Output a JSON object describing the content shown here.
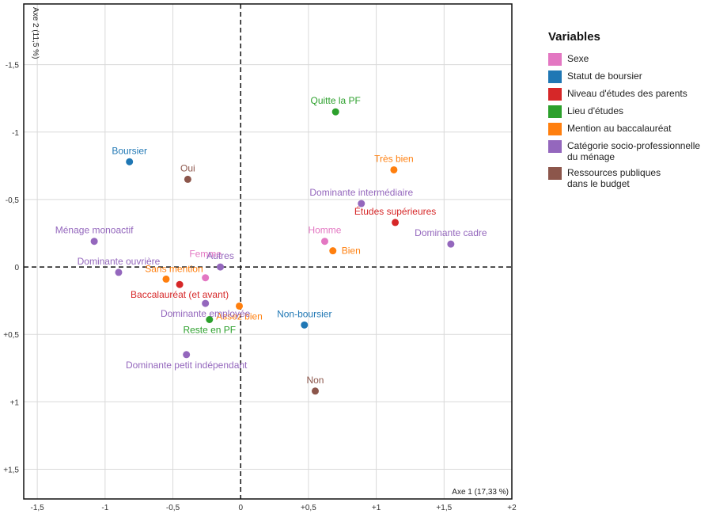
{
  "chart_data": {
    "type": "scatter",
    "xlabel": "Axe 1 (17,33 %)",
    "ylabel": "Axe 2 (11,5 %)",
    "xlim": [
      -1.6,
      2.0
    ],
    "ylim": [
      -1.95,
      1.72
    ],
    "y_inverted": true,
    "grid": true,
    "legend_position": "right",
    "x_ticks": [
      {
        "value": -1.5,
        "label": "-1,5"
      },
      {
        "value": -1,
        "label": "-1"
      },
      {
        "value": -0.5,
        "label": "-0,5"
      },
      {
        "value": 0,
        "label": "0"
      },
      {
        "value": 0.5,
        "label": "+0,5"
      },
      {
        "value": 1,
        "label": "+1"
      },
      {
        "value": 1.5,
        "label": "+1,5"
      },
      {
        "value": 2,
        "label": "+2"
      }
    ],
    "y_ticks": [
      {
        "value": -1.5,
        "label": "-1,5"
      },
      {
        "value": -1,
        "label": "-1"
      },
      {
        "value": -0.5,
        "label": "-0,5"
      },
      {
        "value": 0,
        "label": "0"
      },
      {
        "value": 0.5,
        "label": "+0,5"
      },
      {
        "value": 1,
        "label": "+1"
      },
      {
        "value": 1.5,
        "label": "+1,5"
      }
    ],
    "legend_title": "Variables",
    "series": [
      {
        "name": "Sexe",
        "color": "#e377c2",
        "points": [
          {
            "label": "Homme",
            "x": 0.62,
            "y": -0.19,
            "pos": "above"
          },
          {
            "label": "Femme",
            "x": -0.26,
            "y": 0.08,
            "pos": "above-far"
          }
        ]
      },
      {
        "name": "Statut de boursier",
        "color": "#1f77b4",
        "points": [
          {
            "label": "Boursier",
            "x": -0.82,
            "y": -0.78,
            "pos": "above"
          },
          {
            "label": "Non-boursier",
            "x": 0.47,
            "y": 0.43,
            "pos": "above"
          }
        ]
      },
      {
        "name": "Niveau d'études des parents",
        "color": "#d62728",
        "points": [
          {
            "label": "Études supérieures",
            "x": 1.14,
            "y": -0.33,
            "pos": "above"
          },
          {
            "label": "Baccalauréat (et avant)",
            "x": -0.45,
            "y": 0.13,
            "pos": "below"
          }
        ]
      },
      {
        "name": "Lieu d'études",
        "color": "#2ca02c",
        "points": [
          {
            "label": "Quitte la PF",
            "x": 0.7,
            "y": -1.15,
            "pos": "above"
          },
          {
            "label": "Reste en PF",
            "x": -0.23,
            "y": 0.39,
            "pos": "below"
          }
        ]
      },
      {
        "name": "Mention au baccalauréat",
        "color": "#ff7f0e",
        "points": [
          {
            "label": "Très bien",
            "x": 1.13,
            "y": -0.72,
            "pos": "above"
          },
          {
            "label": "Bien",
            "x": 0.68,
            "y": -0.12,
            "pos": "right"
          },
          {
            "label": "Sans mention",
            "x": -0.55,
            "y": 0.09,
            "pos": "above-right"
          },
          {
            "label": "Assez bien",
            "x": -0.01,
            "y": 0.29,
            "pos": "below"
          }
        ]
      },
      {
        "name": "Catégorie socio-professionnelle du ménage",
        "name_lines": [
          "Catégorie socio-professionnelle",
          "du ménage"
        ],
        "color": "#9467bd",
        "points": [
          {
            "label": "Dominante intermédiaire",
            "x": 0.89,
            "y": -0.47,
            "pos": "above"
          },
          {
            "label": "Dominante cadre",
            "x": 1.55,
            "y": -0.17,
            "pos": "above"
          },
          {
            "label": "Ménage monoactif",
            "x": -1.08,
            "y": -0.19,
            "pos": "above"
          },
          {
            "label": "Autres",
            "x": -0.15,
            "y": 0.0,
            "pos": "above"
          },
          {
            "label": "Dominante ouvrière",
            "x": -0.9,
            "y": 0.04,
            "pos": "above"
          },
          {
            "label": "Dominante employée",
            "x": -0.26,
            "y": 0.27,
            "pos": "below"
          },
          {
            "label": "Dominante petit indépendant",
            "x": -0.4,
            "y": 0.65,
            "pos": "below"
          }
        ]
      },
      {
        "name": "Ressources publiques dans le budget",
        "name_lines": [
          "Ressources publiques",
          "dans le budget"
        ],
        "color": "#8c564b",
        "points": [
          {
            "label": "Oui",
            "x": -0.39,
            "y": -0.65,
            "pos": "above"
          },
          {
            "label": "Non",
            "x": 0.55,
            "y": 0.92,
            "pos": "above"
          }
        ]
      }
    ]
  }
}
